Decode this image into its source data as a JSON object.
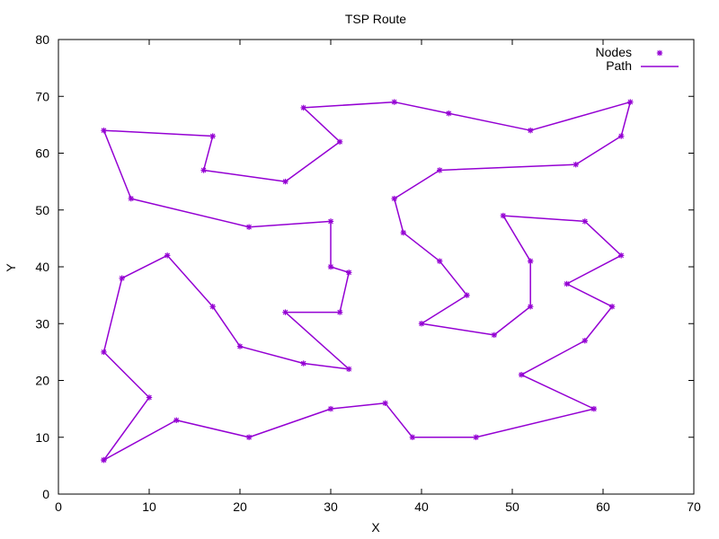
{
  "chart_data": {
    "type": "line",
    "title": "TSP Route",
    "xlabel": "X",
    "ylabel": "Y",
    "xlim": [
      0,
      70
    ],
    "ylim": [
      0,
      80
    ],
    "xticks": [
      0,
      10,
      20,
      30,
      40,
      50,
      60,
      70
    ],
    "yticks": [
      0,
      10,
      20,
      30,
      40,
      50,
      60,
      70,
      80
    ],
    "grid": false,
    "legend_position": "top-right",
    "series": [
      {
        "name": "Nodes",
        "style": "markers",
        "color": "#9400d3"
      },
      {
        "name": "Path",
        "style": "line",
        "color": "#9400d3"
      }
    ],
    "points": [
      [
        5,
        6
      ],
      [
        10,
        17
      ],
      [
        5,
        25
      ],
      [
        7,
        38
      ],
      [
        12,
        42
      ],
      [
        17,
        33
      ],
      [
        20,
        26
      ],
      [
        27,
        23
      ],
      [
        32,
        22
      ],
      [
        25,
        32
      ],
      [
        31,
        32
      ],
      [
        32,
        39
      ],
      [
        30,
        40
      ],
      [
        30,
        48
      ],
      [
        21,
        47
      ],
      [
        8,
        52
      ],
      [
        5,
        64
      ],
      [
        17,
        63
      ],
      [
        16,
        57
      ],
      [
        25,
        55
      ],
      [
        31,
        62
      ],
      [
        27,
        68
      ],
      [
        37,
        69
      ],
      [
        43,
        67
      ],
      [
        52,
        64
      ],
      [
        63,
        69
      ],
      [
        62,
        63
      ],
      [
        57,
        58
      ],
      [
        42,
        57
      ],
      [
        37,
        52
      ],
      [
        38,
        46
      ],
      [
        42,
        41
      ],
      [
        45,
        35
      ],
      [
        40,
        30
      ],
      [
        48,
        28
      ],
      [
        52,
        33
      ],
      [
        52,
        41
      ],
      [
        49,
        49
      ],
      [
        58,
        48
      ],
      [
        62,
        42
      ],
      [
        56,
        37
      ],
      [
        61,
        33
      ],
      [
        58,
        27
      ],
      [
        51,
        21
      ],
      [
        59,
        15
      ],
      [
        46,
        10
      ],
      [
        39,
        10
      ],
      [
        36,
        16
      ],
      [
        30,
        15
      ],
      [
        21,
        10
      ],
      [
        13,
        13
      ],
      [
        5,
        6
      ]
    ]
  }
}
